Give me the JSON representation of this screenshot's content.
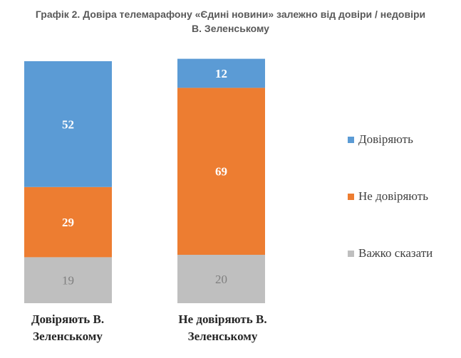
{
  "title_line1": "Графік 2. Довіра телемарафону «Єдині новини» залежно від довіри / недовіри",
  "title_line2": "В. Зеленському",
  "colors": {
    "trust": "#5b9bd5",
    "distrust": "#ed7d31",
    "hard": "#bfbfbf",
    "label_light": "#ffffff",
    "label_dark": "#7f7f7f"
  },
  "chart_data": {
    "type": "bar",
    "stacked": true,
    "categories": [
      "Довіряють В. Зеленському",
      "Не довіряють В. Зеленському"
    ],
    "category_lines": [
      [
        "Довіряють В.",
        "Зеленському"
      ],
      [
        "Не довіряють В.",
        "Зеленському"
      ]
    ],
    "series": [
      {
        "name": "Важко сказати",
        "values": [
          19,
          20
        ],
        "color": "#bfbfbf"
      },
      {
        "name": "Не довіряють",
        "values": [
          29,
          69
        ],
        "color": "#ed7d31"
      },
      {
        "name": "Довіряють",
        "values": [
          52,
          12
        ],
        "color": "#5b9bd5"
      }
    ],
    "ylim": [
      0,
      100
    ],
    "legend_position": "right",
    "grid": false
  },
  "legend": [
    "Довіряють",
    "Не довіряють",
    "Важко сказати"
  ]
}
